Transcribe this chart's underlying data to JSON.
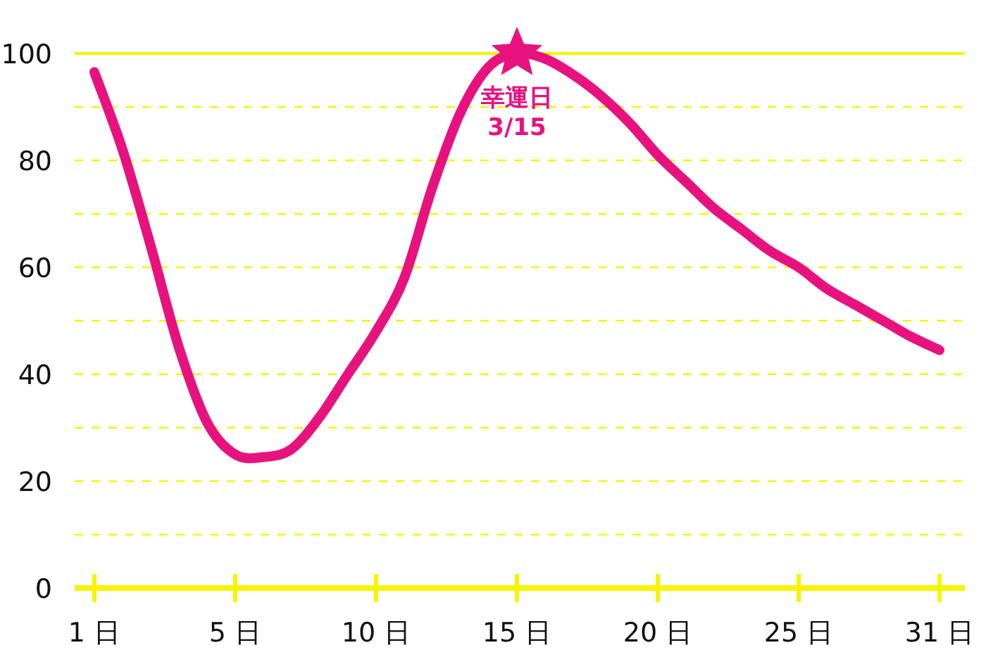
{
  "chart_data": {
    "type": "line",
    "ylim": [
      0,
      100
    ],
    "categories": [
      "1 日",
      null,
      null,
      null,
      null,
      "5 日",
      null,
      null,
      null,
      null,
      "10 日",
      null,
      null,
      null,
      null,
      "15 日",
      null,
      null,
      null,
      null,
      "20 日",
      null,
      null,
      null,
      null,
      "25 日",
      null,
      null,
      null,
      null,
      "31 日"
    ],
    "yticks": [
      0,
      {
        "value": 10,
        "label": null
      },
      20,
      {
        "value": 30,
        "label": null
      },
      40,
      {
        "value": 50,
        "label": null
      },
      60,
      {
        "value": 70,
        "label": null
      },
      80,
      {
        "value": 90,
        "label": null
      },
      100
    ],
    "grid": "y",
    "line_style": "solid",
    "series": [
      {
        "color": "#e8127f",
        "values": [
          96.5,
          82,
          64,
          45,
          31,
          25,
          24.5,
          26,
          32,
          40,
          48,
          58,
          75,
          89,
          97.5,
          100,
          99,
          96,
          92,
          87,
          81,
          76,
          71,
          67,
          63,
          60,
          56,
          53,
          50,
          47,
          44.5
        ]
      },
      {
        "type": "scatter",
        "marker": "star",
        "color": "#e8127f",
        "x": [
          "15 日"
        ],
        "values": [
          100
        ]
      }
    ],
    "annotations": [
      {
        "text": "幸運日 3/15",
        "x": "15 日",
        "y": 100
      }
    ]
  }
}
